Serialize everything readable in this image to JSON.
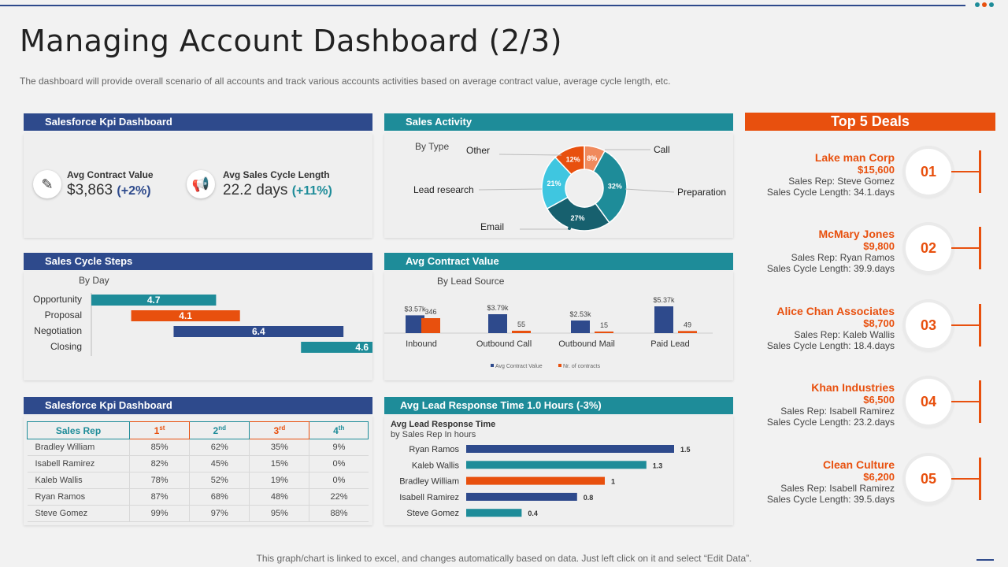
{
  "header": {
    "title": "Managing Account Dashboard (2/3)",
    "subtitle": "The dashboard will provide overall scenario of all accounts and track various accounts activities based on average contract value, average cycle length, etc."
  },
  "colors": {
    "navy": "#2e4a8c",
    "teal": "#1e8c99",
    "orange": "#e8500e",
    "light_orange": "#f08a5d",
    "cyan": "#3fc6e0",
    "dark_teal": "#17606e"
  },
  "kpi_panel": {
    "title": "Salesforce Kpi Dashboard",
    "items": [
      {
        "icon": "contract-icon",
        "label": "Avg Contract Value",
        "value": "$3,863",
        "change": "(+2%)"
      },
      {
        "icon": "megaphone-icon",
        "label": "Avg Sales Cycle Length",
        "value": "22.2 days",
        "change": "(+11%)"
      }
    ]
  },
  "sales_activity": {
    "title": "Sales Activity",
    "subtitle": "By Type"
  },
  "sales_cycle": {
    "title": "Sales Cycle Steps",
    "subtitle": "By Day"
  },
  "avg_contract": {
    "title": "Avg Contract Value",
    "subtitle": "By Lead Source"
  },
  "table_panel": {
    "title": "Salesforce Kpi Dashboard",
    "headers": {
      "rep": "Sales Rep",
      "q1": "1",
      "q1s": "st",
      "q2": "2",
      "q2s": "nd",
      "q3": "3",
      "q3s": "rd",
      "q4": "4",
      "q4s": "th"
    },
    "rows": [
      {
        "rep": "Bradley William",
        "q1": "85%",
        "q2": "62%",
        "q3": "35%",
        "q4": "9%"
      },
      {
        "rep": "Isabell Ramirez",
        "q1": "82%",
        "q2": "45%",
        "q3": "15%",
        "q4": "0%"
      },
      {
        "rep": "Kaleb Wallis",
        "q1": "78%",
        "q2": "52%",
        "q3": "19%",
        "q4": "0%"
      },
      {
        "rep": "Ryan Ramos",
        "q1": "87%",
        "q2": "68%",
        "q3": "48%",
        "q4": "22%"
      },
      {
        "rep": "Steve Gomez",
        "q1": "99%",
        "q2": "97%",
        "q3": "95%",
        "q4": "88%"
      }
    ]
  },
  "lead_response": {
    "title": "Avg Lead Response Time 1.0 Hours (-3%)",
    "subtitle1": "Avg Lead Response Time",
    "subtitle2": "by Sales Rep In hours"
  },
  "top5": {
    "title": "Top 5 Deals",
    "deals": [
      {
        "name": "Lake man Corp",
        "amount": "$15,600",
        "rep": "Sales Rep: Steve Gomez",
        "cycle": "Sales Cycle Length: 34.1.days",
        "rank": "01"
      },
      {
        "name": "McMary Jones",
        "amount": "$9,800",
        "rep": "Sales Rep: Ryan Ramos",
        "cycle": "Sales Cycle Length: 39.9.days",
        "rank": "02"
      },
      {
        "name": "Alice Chan Associates",
        "amount": "$8,700",
        "rep": "Sales Rep: Kaleb Wallis",
        "cycle": "Sales Cycle Length: 18.4.days",
        "rank": "03"
      },
      {
        "name": "Khan Industries",
        "amount": "$6,500",
        "rep": "Sales Rep: Isabell Ramirez",
        "cycle": "Sales Cycle Length: 23.2.days",
        "rank": "04"
      },
      {
        "name": "Clean Culture",
        "amount": "$6,200",
        "rep": "Sales Rep: Isabell Ramirez",
        "cycle": "Sales Cycle Length: 39.5.days",
        "rank": "05"
      }
    ]
  },
  "footer": {
    "note": "This graph/chart is linked to excel, and changes automatically based on data. Just left click on it and select “Edit Data”."
  },
  "chart_data": [
    {
      "type": "pie",
      "title": "Sales Activity",
      "subtitle": "By Type",
      "slices": [
        {
          "label": "Call",
          "value": 8,
          "display": "8%",
          "color": "#f08a5d"
        },
        {
          "label": "Preparation",
          "value": 32,
          "display": "32%",
          "color": "#1e8c99"
        },
        {
          "label": "Email",
          "value": 27,
          "display": "27%",
          "color": "#17606e"
        },
        {
          "label": "Lead research",
          "value": 21,
          "display": "21%",
          "color": "#3fc6e0"
        },
        {
          "label": "Other",
          "value": 12,
          "display": "12%",
          "color": "#e8500e"
        }
      ]
    },
    {
      "type": "bar",
      "title": "Sales Cycle Steps",
      "subtitle": "By Day",
      "categories": [
        "Opportunity",
        "Proposal",
        "Negotiation",
        "Closing"
      ],
      "starts": [
        0,
        1.5,
        3.1,
        7.9
      ],
      "values": [
        4.7,
        4.1,
        6.4,
        4.6
      ],
      "colors": [
        "#1e8c99",
        "#e8500e",
        "#2e4a8c",
        "#1e8c99"
      ]
    },
    {
      "type": "bar",
      "title": "Avg Contract Value",
      "subtitle": "By Lead Source",
      "categories": [
        "Inbound",
        "Outbound Call",
        "Outbound Mail",
        "Paid Lead"
      ],
      "series": [
        {
          "name": "Avg Contract Value",
          "values": [
            3570,
            3790,
            2530,
            5370
          ],
          "labels": [
            "$3.57k",
            "$3.79k",
            "$2.53k",
            "$5.37k"
          ],
          "color": "#2e4a8c"
        },
        {
          "name": "Nr. of contracts",
          "values": [
            346,
            55,
            15,
            49
          ],
          "labels": [
            "346",
            "55",
            "15",
            "49"
          ],
          "color": "#e8500e"
        }
      ]
    },
    {
      "type": "bar",
      "title": "Avg Lead Response Time",
      "subtitle": "by Sales Rep In hours",
      "categories": [
        "Ryan Ramos",
        "Kaleb Wallis",
        "Bradley William",
        "Isabell Ramirez",
        "Steve Gomez"
      ],
      "values": [
        1.5,
        1.3,
        1,
        0.8,
        0.4
      ],
      "colors": [
        "#2e4a8c",
        "#1e8c99",
        "#e8500e",
        "#2e4a8c",
        "#1e8c99"
      ]
    }
  ]
}
